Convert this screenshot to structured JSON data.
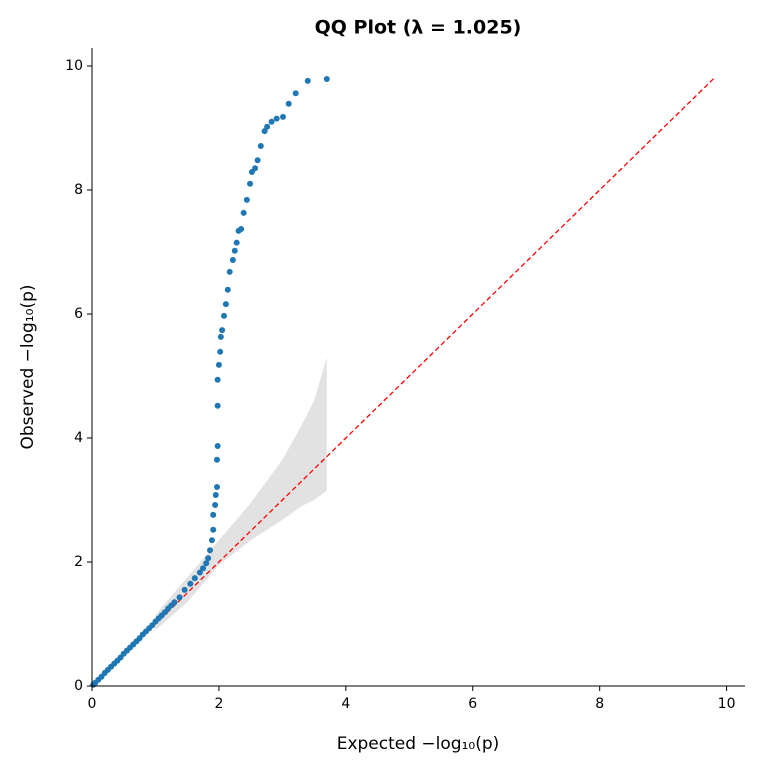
{
  "chart_data": {
    "type": "scatter",
    "title": "QQ Plot (λ = 1.025)",
    "x_label": "Expected −log₁₀(p)",
    "y_label": "Observed −log₁₀(p)",
    "color": "#1f77b4",
    "x": [
      0.02,
      0.05,
      0.1,
      0.15,
      0.2,
      0.25,
      0.3,
      0.35,
      0.4,
      0.45,
      0.5,
      0.55,
      0.6,
      0.65,
      0.7,
      0.75,
      0.8,
      0.85,
      0.9,
      0.95,
      1.0,
      1.05,
      1.1,
      1.15,
      1.2,
      1.25,
      1.3,
      1.38,
      1.46,
      1.55,
      1.62,
      1.7,
      1.75,
      1.8,
      1.83,
      1.86,
      1.89,
      1.91,
      1.91,
      1.94,
      1.95,
      1.97,
      1.97,
      1.98,
      1.98,
      1.98,
      2.0,
      2.02,
      2.03,
      2.05,
      2.08,
      2.11,
      2.14,
      2.17,
      2.22,
      2.25,
      2.28,
      2.31,
      2.35,
      2.39,
      2.44,
      2.49,
      2.52,
      2.57,
      2.61,
      2.66,
      2.72,
      2.76,
      2.83,
      2.91,
      3.01,
      3.1,
      3.21,
      3.4,
      3.7
    ],
    "y": [
      0.02,
      0.05,
      0.1,
      0.15,
      0.21,
      0.26,
      0.31,
      0.36,
      0.41,
      0.46,
      0.52,
      0.57,
      0.62,
      0.67,
      0.72,
      0.77,
      0.83,
      0.88,
      0.93,
      0.98,
      1.04,
      1.09,
      1.14,
      1.19,
      1.25,
      1.3,
      1.35,
      1.43,
      1.55,
      1.65,
      1.74,
      1.83,
      1.9,
      1.98,
      2.06,
      2.19,
      2.35,
      2.52,
      2.76,
      2.92,
      3.08,
      3.21,
      3.65,
      3.87,
      4.52,
      4.94,
      5.18,
      5.39,
      5.63,
      5.74,
      5.97,
      6.16,
      6.39,
      6.68,
      6.87,
      7.02,
      7.15,
      7.34,
      7.37,
      7.63,
      7.84,
      8.1,
      8.29,
      8.35,
      8.48,
      8.71,
      8.95,
      9.02,
      9.1,
      9.15,
      9.18,
      9.39,
      9.56,
      9.76,
      9.79
    ],
    "band": {
      "color": "#d3d3d3",
      "x": [
        1.0,
        1.5,
        2.0,
        2.5,
        3.0,
        3.3,
        3.5,
        3.7
      ],
      "lower": [
        0.9,
        1.35,
        1.95,
        2.35,
        2.68,
        2.9,
        3.0,
        3.15
      ],
      "upper": [
        1.15,
        1.75,
        2.35,
        2.95,
        3.65,
        4.2,
        4.6,
        5.3
      ]
    },
    "reference_line": {
      "color": "#ff0000",
      "x": [
        0,
        9.8
      ],
      "y": [
        0,
        9.8
      ]
    },
    "xlim": [
      0,
      10.29
    ],
    "ylim": [
      0,
      10.29
    ],
    "xticks": [
      0,
      2,
      4,
      6,
      8,
      10
    ],
    "yticks": [
      0,
      2,
      4,
      6,
      8,
      10
    ],
    "grid": false
  }
}
